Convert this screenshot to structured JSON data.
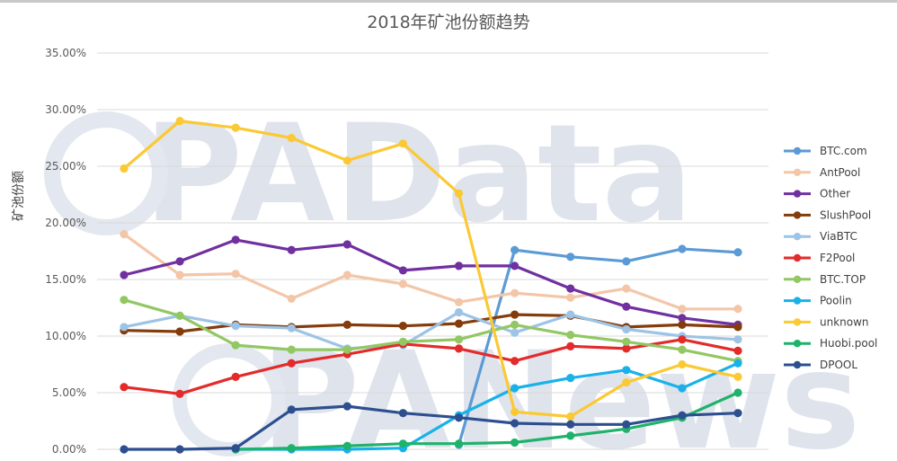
{
  "chart_data": {
    "type": "line",
    "title": "2018年矿池份额趋势",
    "ylabel": "矿池份额",
    "xlabel": "",
    "ylim": [
      0,
      35
    ],
    "y_ticks": [
      "0.00%",
      "5.00%",
      "10.00%",
      "15.00%",
      "20.00%",
      "25.00%",
      "30.00%",
      "35.00%"
    ],
    "grid": true,
    "legend_position": "right",
    "num_points": 12,
    "watermark": [
      "PAData",
      "PANews"
    ],
    "series": [
      {
        "name": "BTC.com",
        "color": "#5b9bd5",
        "values": [
          null,
          null,
          null,
          null,
          null,
          null,
          0.4,
          17.6,
          17.0,
          16.6,
          17.7,
          17.4
        ]
      },
      {
        "name": "AntPool",
        "color": "#f4c6a8",
        "values": [
          19.0,
          15.4,
          15.5,
          13.3,
          15.4,
          14.6,
          13.0,
          13.8,
          13.4,
          14.2,
          12.4,
          12.4
        ]
      },
      {
        "name": "Other",
        "color": "#7030a0",
        "values": [
          15.4,
          16.6,
          18.5,
          17.6,
          18.1,
          15.8,
          16.2,
          16.2,
          14.2,
          12.6,
          11.6,
          11.0
        ]
      },
      {
        "name": "SlushPool",
        "color": "#843c0c",
        "values": [
          10.5,
          10.4,
          11.0,
          10.8,
          11.0,
          10.9,
          11.1,
          11.9,
          11.8,
          10.8,
          11.0,
          10.8
        ]
      },
      {
        "name": "ViaBTC",
        "color": "#9dc3e6",
        "values": [
          10.8,
          11.8,
          10.9,
          10.7,
          8.9,
          9.2,
          12.1,
          10.3,
          11.9,
          10.6,
          10.0,
          9.7
        ]
      },
      {
        "name": "F2Pool",
        "color": "#e32b2b",
        "values": [
          5.5,
          4.9,
          6.4,
          7.6,
          8.4,
          9.3,
          8.9,
          7.8,
          9.1,
          8.9,
          9.7,
          8.7
        ]
      },
      {
        "name": "BTC.TOP",
        "color": "#92c764",
        "values": [
          13.2,
          11.8,
          9.2,
          8.8,
          8.8,
          9.5,
          9.7,
          11.0,
          10.1,
          9.5,
          8.8,
          7.8
        ]
      },
      {
        "name": "Poolin",
        "color": "#19b2e8",
        "values": [
          null,
          null,
          0.0,
          0.0,
          0.0,
          0.1,
          3.0,
          5.4,
          6.3,
          7.0,
          5.4,
          7.6
        ]
      },
      {
        "name": "unknown",
        "color": "#fbc934",
        "values": [
          24.8,
          29.0,
          28.4,
          27.5,
          25.5,
          27.0,
          22.6,
          3.3,
          2.9,
          5.9,
          7.5,
          6.4
        ]
      },
      {
        "name": "Huobi.pool",
        "color": "#1fb26b",
        "values": [
          null,
          null,
          0.0,
          0.1,
          0.3,
          0.5,
          0.5,
          0.6,
          1.2,
          1.8,
          2.8,
          5.0
        ]
      },
      {
        "name": "DPOOL",
        "color": "#2e4f8f",
        "values": [
          0.0,
          0.0,
          0.1,
          3.5,
          3.8,
          3.2,
          2.8,
          2.3,
          2.2,
          2.2,
          3.0,
          3.2
        ]
      }
    ]
  }
}
